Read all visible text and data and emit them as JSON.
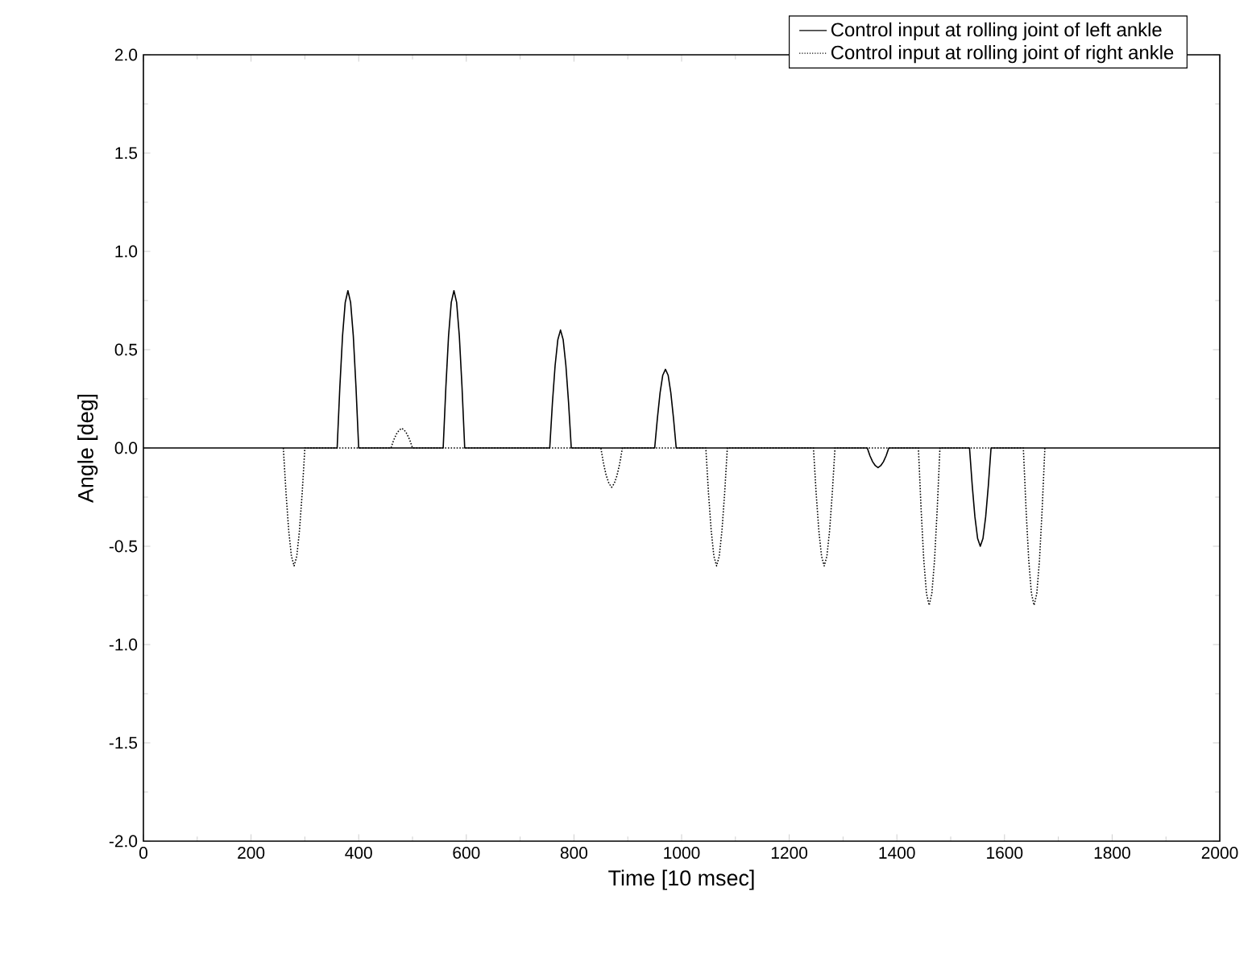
{
  "chart_data": {
    "type": "line",
    "xlabel": "Time [10 msec]",
    "ylabel": "Angle [deg]",
    "xlim": [
      0,
      2000
    ],
    "ylim": [
      -2.0,
      2.0
    ],
    "xticks": [
      0,
      200,
      400,
      600,
      800,
      1000,
      1200,
      1400,
      1600,
      1800,
      2000
    ],
    "yticks": [
      {
        "value": -2.0,
        "label": "-2.0"
      },
      {
        "value": -1.5,
        "label": "-1.5"
      },
      {
        "value": -1.0,
        "label": "-1.0"
      },
      {
        "value": -0.5,
        "label": "-0.5"
      },
      {
        "value": 0.0,
        "label": "0.0"
      },
      {
        "value": 0.5,
        "label": "0.5"
      },
      {
        "value": 1.0,
        "label": "1.0"
      },
      {
        "value": 1.5,
        "label": "1.5"
      },
      {
        "value": 2.0,
        "label": "2.0"
      }
    ],
    "grid": false,
    "legend": "top right",
    "marker": "none",
    "series": [
      {
        "name": "Control input at rolling joint of left ankle",
        "color": "#000000",
        "line_style": "solid",
        "x": [
          0,
          360,
          365,
          370,
          375,
          380,
          385,
          390,
          395,
          400,
          557,
          562,
          567,
          572,
          577,
          582,
          587,
          592,
          597,
          755,
          760,
          765,
          770,
          775,
          780,
          785,
          790,
          795,
          950,
          955,
          960,
          965,
          970,
          975,
          980,
          985,
          990,
          1345,
          1350,
          1355,
          1360,
          1365,
          1370,
          1375,
          1380,
          1385,
          1535,
          1540,
          1545,
          1550,
          1555,
          1560,
          1565,
          1570,
          1575,
          2000
        ],
        "values": [
          0,
          0,
          0.31,
          0.57,
          0.74,
          0.8,
          0.74,
          0.57,
          0.31,
          0,
          0,
          0.31,
          0.57,
          0.74,
          0.8,
          0.74,
          0.57,
          0.31,
          0,
          0,
          0.23,
          0.42,
          0.55,
          0.6,
          0.55,
          0.42,
          0.23,
          0,
          0,
          0.15,
          0.28,
          0.37,
          0.4,
          0.37,
          0.28,
          0.15,
          0,
          0,
          -0.04,
          -0.07,
          -0.09,
          -0.1,
          -0.09,
          -0.07,
          -0.04,
          0,
          0,
          -0.19,
          -0.35,
          -0.46,
          -0.5,
          -0.46,
          -0.35,
          -0.19,
          0,
          0
        ]
      },
      {
        "name": "Control input at rolling joint of right ankle",
        "color": "#000000",
        "line_style": "dotted",
        "x": [
          260,
          265,
          270,
          275,
          280,
          285,
          290,
          295,
          300,
          460,
          465,
          470,
          475,
          480,
          485,
          490,
          495,
          500,
          850,
          855,
          860,
          865,
          870,
          875,
          880,
          885,
          890,
          1045,
          1050,
          1055,
          1060,
          1065,
          1070,
          1075,
          1080,
          1085,
          1245,
          1250,
          1255,
          1260,
          1265,
          1270,
          1275,
          1280,
          1285,
          1440,
          1445,
          1450,
          1455,
          1460,
          1465,
          1470,
          1475,
          1480,
          1635,
          1640,
          1645,
          1650,
          1655,
          1660,
          1665,
          1670,
          1675
        ],
        "values": [
          0,
          -0.23,
          -0.42,
          -0.55,
          -0.6,
          -0.55,
          -0.42,
          -0.23,
          0,
          0,
          0.04,
          0.07,
          0.09,
          0.1,
          0.09,
          0.07,
          0.04,
          0,
          0,
          -0.08,
          -0.14,
          -0.18,
          -0.2,
          -0.18,
          -0.14,
          -0.08,
          0,
          0,
          -0.23,
          -0.42,
          -0.55,
          -0.6,
          -0.55,
          -0.42,
          -0.23,
          0,
          0,
          -0.23,
          -0.42,
          -0.55,
          -0.6,
          -0.55,
          -0.42,
          -0.23,
          0,
          0,
          -0.31,
          -0.57,
          -0.74,
          -0.8,
          -0.74,
          -0.57,
          -0.31,
          0,
          0,
          -0.31,
          -0.57,
          -0.74,
          -0.8,
          -0.74,
          -0.57,
          -0.31,
          0
        ]
      }
    ]
  }
}
